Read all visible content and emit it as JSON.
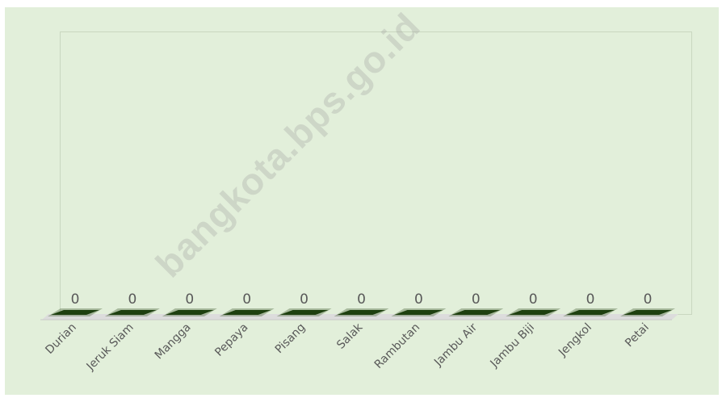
{
  "chart_data": {
    "type": "bar",
    "categories": [
      "Durian",
      "Jeruk Siam",
      "Mangga",
      "Pepaya",
      "Pisang",
      "Salak",
      "Rambutan",
      "Jambu Air",
      "Jambu Biji",
      "Jengkol",
      "Petai"
    ],
    "values": [
      0,
      0,
      0,
      0,
      0,
      0,
      0,
      0,
      0,
      0,
      0
    ],
    "data_labels": [
      "0",
      "0",
      "0",
      "0",
      "0",
      "0",
      "0",
      "0",
      "0",
      "0",
      "0"
    ],
    "title": "",
    "xlabel": "",
    "ylabel": "",
    "grid": false,
    "legend": "none",
    "colors": {
      "background": "#e2efda",
      "bar": "#1e4010",
      "text": "#595959"
    }
  },
  "watermark": "bangkota.bps.go.id"
}
